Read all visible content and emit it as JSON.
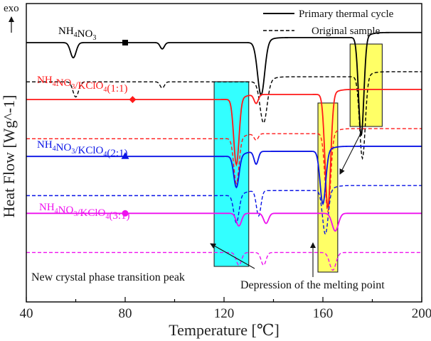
{
  "chart_data": {
    "type": "line",
    "title": "",
    "xlabel": "Temperature [℃]",
    "ylabel": "Heat Flow [Wg^-1]",
    "xlim": [
      40,
      200
    ],
    "x_ticks": [
      "40",
      "80",
      "120",
      "160",
      "200"
    ],
    "y_direction_label": "exo",
    "legend": [
      {
        "name": "Primary thermal cycle",
        "style": "solid"
      },
      {
        "name": "Original sample",
        "style": "dashed"
      }
    ],
    "series": [
      {
        "label": "NH₄NO₃",
        "label_main": "NH",
        "label_sub1": "4",
        "label_mid": "NO",
        "label_sub2": "3",
        "label_tail": "",
        "color": "#000000",
        "marker": "square",
        "marker_x": 80,
        "baseline": 0.0,
        "primary_peaks": [
          {
            "center": 59,
            "depth": 0.12,
            "width": 1.6
          },
          {
            "center": 95,
            "depth": 0.05,
            "width": 1.2
          },
          {
            "center": 135,
            "depth": 0.42,
            "width": 2.0
          },
          {
            "center": 175.5,
            "depth": 0.78,
            "width": 1.5
          }
        ],
        "original_peaks": [
          {
            "center": 60,
            "depth": 0.12,
            "width": 1.6
          },
          {
            "center": 95,
            "depth": 0.05,
            "width": 1.2
          },
          {
            "center": 136,
            "depth": 0.33,
            "width": 2.0
          },
          {
            "center": 176,
            "depth": 0.65,
            "width": 1.6
          }
        ]
      },
      {
        "label": "NH₄NO₃/KClO₄(1:1)",
        "label_main": "NH",
        "label_sub1": "4",
        "label_mid": "NO",
        "label_sub2": "3",
        "label_tail": "/KClO",
        "label_sub3": "4",
        "label_end": "(1:1)",
        "color": "#ff1a1a",
        "marker": "diamond",
        "marker_x": 83,
        "baseline": -0.45,
        "primary_peaks": [
          {
            "center": 125,
            "depth": 0.52,
            "width": 1.5
          },
          {
            "center": 133,
            "depth": 0.07,
            "width": 1.2
          },
          {
            "center": 162,
            "depth": 0.9,
            "width": 1.6
          }
        ],
        "original_peaks": [
          {
            "center": 125,
            "depth": 0.36,
            "width": 1.5
          },
          {
            "center": 133,
            "depth": 0.05,
            "width": 1.2
          },
          {
            "center": 162,
            "depth": 0.62,
            "width": 1.6
          }
        ]
      },
      {
        "label": "NH₄NO₃/KClO₄(2:1)",
        "label_main": "NH",
        "label_sub1": "4",
        "label_mid": "NO",
        "label_sub2": "3",
        "label_tail": "/KClO",
        "label_sub3": "4",
        "label_end": "(2:1)",
        "color": "#0a14e6",
        "marker": "triangle",
        "marker_x": 80,
        "baseline": -0.9,
        "primary_peaks": [
          {
            "center": 125,
            "depth": 0.25,
            "width": 1.5
          },
          {
            "center": 133,
            "depth": 0.1,
            "width": 1.2
          },
          {
            "center": 160,
            "depth": 0.42,
            "width": 1.6
          }
        ],
        "original_peaks": [
          {
            "center": 125,
            "depth": 0.22,
            "width": 1.5
          },
          {
            "center": 134,
            "depth": 0.2,
            "width": 1.3
          },
          {
            "center": 161,
            "depth": 0.35,
            "width": 1.6
          }
        ]
      },
      {
        "label": "NH₄NO₃/KClO₄(3:1)",
        "label_main": "NH",
        "label_sub1": "4",
        "label_mid": "NO",
        "label_sub2": "3",
        "label_tail": "/KClO",
        "label_sub3": "4",
        "label_end": "(3:1)",
        "color": "#ee11ee",
        "marker": "circle",
        "marker_x": 80,
        "baseline": -1.35,
        "primary_peaks": [
          {
            "center": 126,
            "depth": 0.1,
            "width": 1.5
          },
          {
            "center": 137,
            "depth": 0.08,
            "width": 1.4
          },
          {
            "center": 165,
            "depth": 0.14,
            "width": 1.8
          }
        ],
        "original_peaks": [
          {
            "center": 126,
            "depth": 0.1,
            "width": 1.5
          },
          {
            "center": 136,
            "depth": 0.1,
            "width": 1.4
          },
          {
            "center": 164,
            "depth": 0.14,
            "width": 1.8
          }
        ]
      }
    ],
    "highlights": [
      {
        "name": "phase-transition-box",
        "x_range": [
          116,
          130
        ],
        "color": "#33ffff"
      },
      {
        "name": "melting-point-box",
        "x_range": [
          158,
          166
        ],
        "color": "#ffff66"
      },
      {
        "name": "nh4no3-melting-box",
        "x_range": [
          171,
          184
        ],
        "color": "#ffff66"
      }
    ],
    "annotations": [
      {
        "text": "New crystal phase transition peak",
        "points_to_x": 116
      },
      {
        "text": "Depression of the melting point",
        "points_to_x": 162
      }
    ]
  }
}
